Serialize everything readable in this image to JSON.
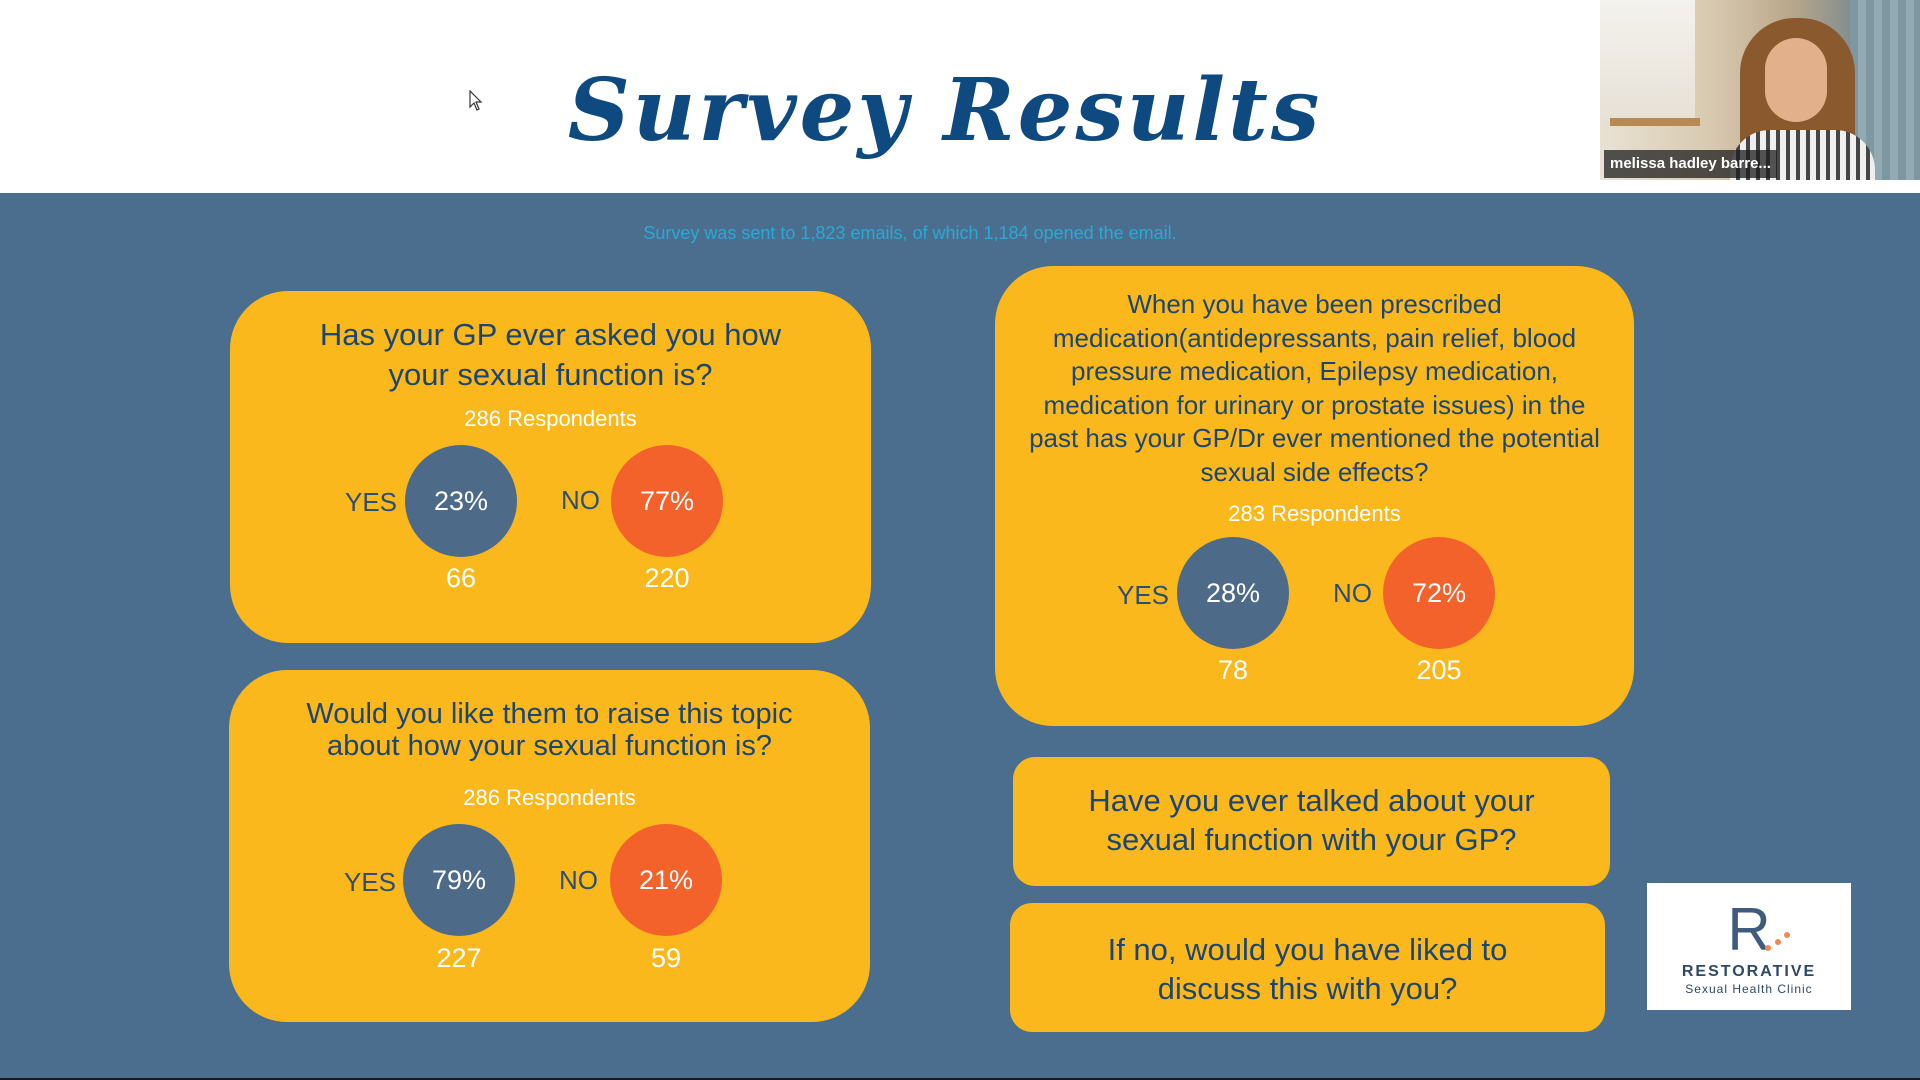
{
  "title": "Survey Results",
  "video_tile": {
    "participant_name": "melissa hadley barre..."
  },
  "subtitle": "Survey was sent to 1,823 emails, of which 1,184 opened the email.",
  "colors": {
    "slide_bg": "#4c6e8e",
    "card": "#fbb81c",
    "yes": "#4e6a89",
    "no": "#f4622c",
    "title": "#0e4a80",
    "subtitle": "#2aa8d8"
  },
  "questions": [
    {
      "question": "Has your GP ever asked you how your sexual function is?",
      "respondents": "286 Respondents",
      "yes_label": "YES",
      "yes_pct": "23%",
      "yes_count": "66",
      "no_label": "NO",
      "no_pct": "77%",
      "no_count": "220"
    },
    {
      "question": "Would you like them to raise this topic about how your sexual function is?",
      "respondents": "286 Respondents",
      "yes_label": "YES",
      "yes_pct": "79%",
      "yes_count": "227",
      "no_label": "NO",
      "no_pct": "21%",
      "no_count": "59"
    },
    {
      "question": "When you have been prescribed medication(antidepressants, pain relief, blood pressure medication, Epilepsy medication, medication for urinary or prostate issues) in the past has your GP/Dr ever mentioned the potential sexual side effects?",
      "respondents": "283 Respondents",
      "yes_label": "YES",
      "yes_pct": "28%",
      "yes_count": "78",
      "no_label": "NO",
      "no_pct": "72%",
      "no_count": "205"
    }
  ],
  "boxes": [
    "Have you ever talked about your sexual function with your GP?",
    "If no, would you have liked to discuss this with you?"
  ],
  "logo": {
    "mark": "R",
    "brand": "RESTORATIVE",
    "sub": "Sexual Health Clinic"
  }
}
